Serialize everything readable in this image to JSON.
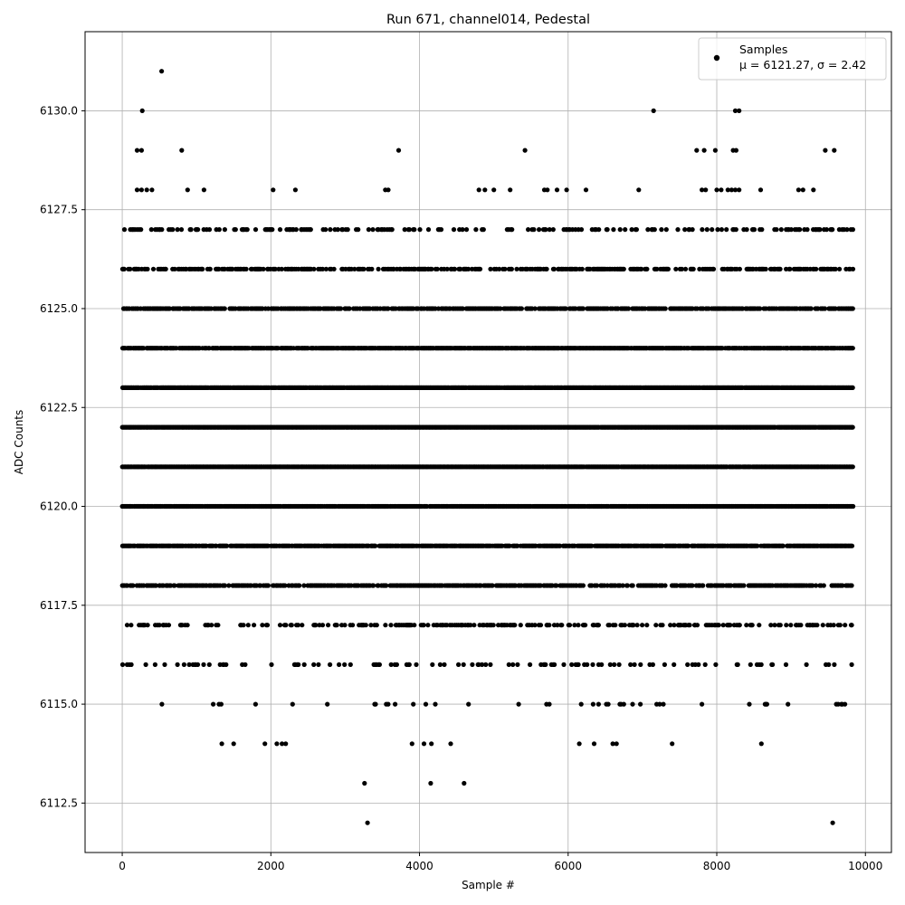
{
  "chart_data": {
    "type": "scatter",
    "title": "Run 671, channel014, Pedestal",
    "xlabel": "Sample #",
    "ylabel": "ADC Counts",
    "xlim": [
      -500,
      10350
    ],
    "ylim": [
      6111.25,
      6132.0
    ],
    "x_ticks": [
      0,
      2000,
      4000,
      6000,
      8000,
      10000
    ],
    "x_tick_labels": [
      "0",
      "2000",
      "4000",
      "6000",
      "8000",
      "10000"
    ],
    "y_ticks": [
      6112.5,
      6115.0,
      6117.5,
      6120.0,
      6122.5,
      6125.0,
      6127.5,
      6130.0
    ],
    "y_tick_labels": [
      "6112.5",
      "6115.0",
      "6117.5",
      "6120.0",
      "6122.5",
      "6125.0",
      "6127.5",
      "6130.0"
    ],
    "grid": true,
    "legend": {
      "position": "top-right",
      "entries": [
        {
          "name": "Samples",
          "stat_label": "μ = 6121.27, σ = 2.42"
        }
      ]
    },
    "marker_color": "#000000",
    "series": [
      {
        "name": "Samples",
        "points": [
          [
            530,
            6131
          ],
          [
            270,
            6130
          ],
          [
            7150,
            6130
          ],
          [
            8250,
            6130
          ],
          [
            8300,
            6130
          ],
          [
            200,
            6129
          ],
          [
            260,
            6129
          ],
          [
            800,
            6129
          ],
          [
            3720,
            6129
          ],
          [
            5420,
            6129
          ],
          [
            7730,
            6129
          ],
          [
            7830,
            6129
          ],
          [
            7980,
            6129
          ],
          [
            8220,
            6129
          ],
          [
            8260,
            6129
          ],
          [
            9460,
            6129
          ],
          [
            9580,
            6129
          ],
          [
            200,
            6128
          ],
          [
            260,
            6128
          ],
          [
            330,
            6128
          ],
          [
            400,
            6128
          ],
          [
            880,
            6128
          ],
          [
            1100,
            6128
          ],
          [
            2030,
            6128
          ],
          [
            2330,
            6128
          ],
          [
            3540,
            6128
          ],
          [
            3580,
            6128
          ],
          [
            4800,
            6128
          ],
          [
            4880,
            6128
          ],
          [
            5000,
            6128
          ],
          [
            5220,
            6128
          ],
          [
            5680,
            6128
          ],
          [
            5720,
            6128
          ],
          [
            5850,
            6128
          ],
          [
            5980,
            6128
          ],
          [
            6240,
            6128
          ],
          [
            6950,
            6128
          ],
          [
            7800,
            6128
          ],
          [
            7850,
            6128
          ],
          [
            8000,
            6128
          ],
          [
            8060,
            6128
          ],
          [
            8150,
            6128
          ],
          [
            8200,
            6128
          ],
          [
            8250,
            6128
          ],
          [
            8300,
            6128
          ],
          [
            8590,
            6128
          ],
          [
            9100,
            6128
          ],
          [
            9160,
            6128
          ],
          [
            9300,
            6128
          ],
          [
            3300,
            6112
          ],
          [
            9560,
            6112
          ],
          [
            3260,
            6113
          ],
          [
            4150,
            6113
          ],
          [
            4600,
            6113
          ],
          [
            1340,
            6114
          ],
          [
            1500,
            6114
          ],
          [
            1920,
            6114
          ],
          [
            2080,
            6114
          ],
          [
            2150,
            6114
          ],
          [
            2200,
            6114
          ],
          [
            3900,
            6114
          ],
          [
            4060,
            6114
          ],
          [
            4160,
            6114
          ],
          [
            4420,
            6114
          ],
          [
            6150,
            6114
          ],
          [
            6350,
            6114
          ],
          [
            6600,
            6114
          ],
          [
            6650,
            6114
          ],
          [
            7400,
            6114
          ],
          [
            8600,
            6114
          ]
        ],
        "dense_levels": [
          6115,
          6116,
          6117,
          6118,
          6119,
          6120,
          6121,
          6122,
          6123,
          6124,
          6125,
          6126,
          6127
        ],
        "x_range": [
          0,
          9840
        ]
      }
    ]
  }
}
